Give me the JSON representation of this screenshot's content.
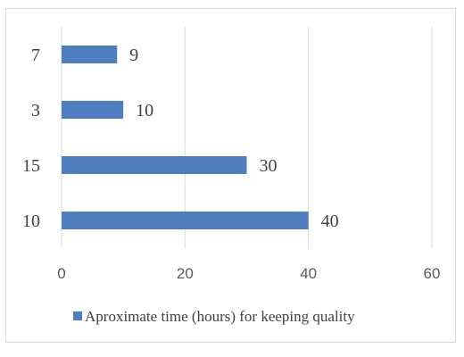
{
  "chart_data": {
    "type": "bar",
    "orientation": "horizontal",
    "categories": [
      "10",
      "15",
      "3",
      "7"
    ],
    "series": [
      {
        "name": "Aproximate time (hours) for keeping quality",
        "values": [
          40,
          30,
          10,
          9
        ],
        "color": "#4f7fc0"
      }
    ],
    "xlim": [
      0,
      60
    ],
    "x_ticks": [
      "0",
      "20",
      "40",
      "60"
    ],
    "grid": "vertical",
    "legend": "bottom",
    "title": "",
    "xlabel": "",
    "ylabel": ""
  }
}
